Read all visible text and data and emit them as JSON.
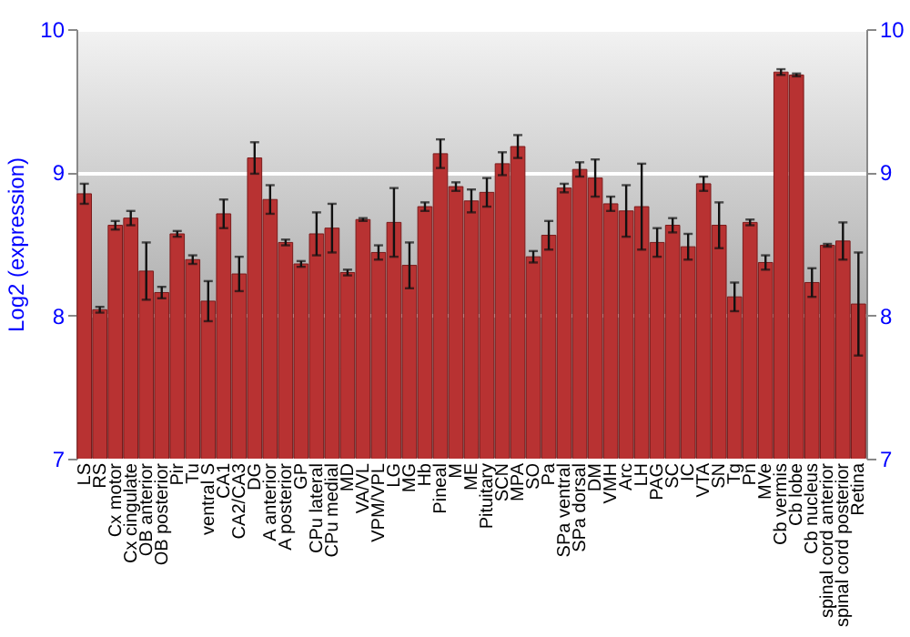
{
  "chart_data": {
    "type": "bar",
    "ylabel": "Log2 (expression)",
    "categories": [
      "LS",
      "RS",
      "Cx motor",
      "Cx cingulate",
      "OB anterior",
      "OB posterior",
      "Pir",
      "Tu",
      "ventral S",
      "CA1",
      "CA2/CA3",
      "DG",
      "A anterior",
      "A posterior",
      "GP",
      "CPu lateral",
      "CPu medial",
      "MD",
      "VA/VL",
      "VPM/VPL",
      "LG",
      "MG",
      "Hb",
      "Pineal",
      "M",
      "ME",
      "Pituitary",
      "SCN",
      "MPA",
      "SO",
      "Pa",
      "SPa ventral",
      "SPa dorsal",
      "DM",
      "VMH",
      "Arc",
      "LH",
      "PAG",
      "SC",
      "IC",
      "VTA",
      "SN",
      "Tg",
      "Pn",
      "MVe",
      "Cb vermis",
      "Cb lobe",
      "Cb nucleus",
      "spinal cord anterior",
      "spinal cord posterior",
      "Retina"
    ],
    "values": [
      8.85,
      8.04,
      8.63,
      8.68,
      8.31,
      8.16,
      8.57,
      8.39,
      8.1,
      8.71,
      8.29,
      9.1,
      8.81,
      8.51,
      8.36,
      8.57,
      8.61,
      8.3,
      8.67,
      8.44,
      8.65,
      8.35,
      8.76,
      9.13,
      8.9,
      8.8,
      8.86,
      9.06,
      9.18,
      8.41,
      8.56,
      8.89,
      9.02,
      8.96,
      8.78,
      8.73,
      8.76,
      8.51,
      8.63,
      8.48,
      8.92,
      8.63,
      8.13,
      8.65,
      8.37,
      9.7,
      9.68,
      8.23,
      8.49,
      8.52,
      8.08
    ],
    "errors": [
      0.07,
      0.02,
      0.03,
      0.05,
      0.2,
      0.04,
      0.02,
      0.03,
      0.14,
      0.1,
      0.12,
      0.11,
      0.1,
      0.02,
      0.02,
      0.15,
      0.17,
      0.02,
      0.01,
      0.05,
      0.24,
      0.16,
      0.03,
      0.1,
      0.03,
      0.08,
      0.1,
      0.08,
      0.08,
      0.04,
      0.1,
      0.03,
      0.05,
      0.13,
      0.05,
      0.18,
      0.3,
      0.1,
      0.05,
      0.09,
      0.05,
      0.16,
      0.1,
      0.02,
      0.05,
      0.02,
      0.01,
      0.1,
      0.01,
      0.13,
      0.36
    ],
    "color": "#b83232",
    "ylim": [
      7,
      10
    ],
    "yticks": [
      7,
      8,
      9,
      10
    ],
    "y2lim": [
      7,
      10
    ],
    "y2ticks": [
      7,
      8,
      9,
      10
    ],
    "grid": "y"
  }
}
